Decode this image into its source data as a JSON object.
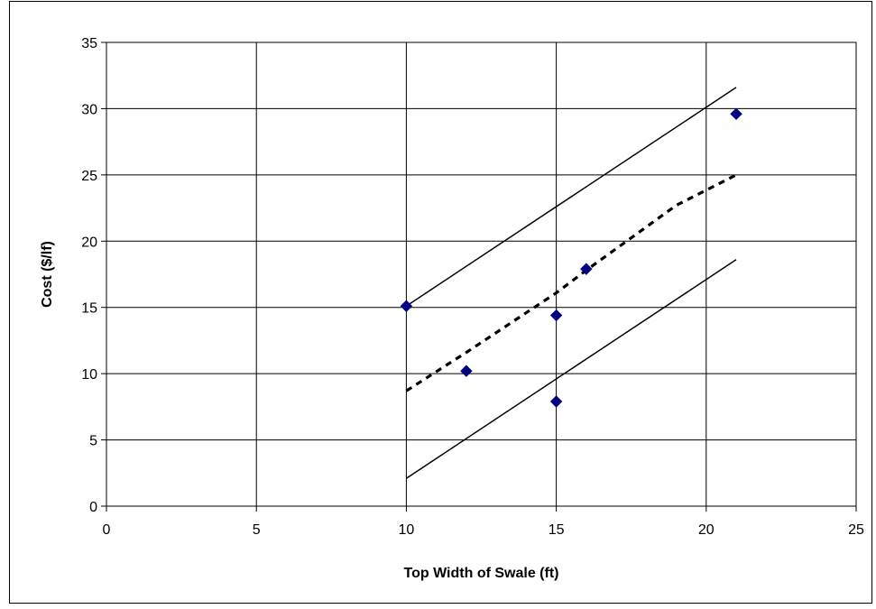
{
  "chart_data": {
    "type": "scatter",
    "title": "",
    "xlabel": "Top Width of Swale (ft)",
    "ylabel": "Cost ($/lf)",
    "xlim": [
      0,
      25
    ],
    "ylim": [
      0,
      35
    ],
    "xticks": [
      "0",
      "5",
      "10",
      "15",
      "20",
      "25"
    ],
    "yticks": [
      "0",
      "5",
      "10",
      "15",
      "20",
      "25",
      "30",
      "35"
    ],
    "grid": true,
    "legend": "none",
    "series": [
      {
        "kind": "points",
        "marker": "diamond",
        "color": "#000080",
        "x": [
          10,
          12,
          15,
          15,
          16,
          21
        ],
        "y": [
          15.1,
          10.2,
          14.4,
          7.9,
          17.9,
          29.6
        ]
      },
      {
        "kind": "line",
        "style": "solid",
        "color": "#000000",
        "x": [
          10,
          21
        ],
        "y": [
          15.1,
          31.6
        ]
      },
      {
        "kind": "line",
        "style": "dotted",
        "color": "#000000",
        "x": [
          10,
          12,
          15,
          16,
          19,
          21
        ],
        "y": [
          8.7,
          11.6,
          16.1,
          17.8,
          22.7,
          25.0
        ]
      },
      {
        "kind": "line",
        "style": "solid",
        "color": "#000000",
        "x": [
          10,
          21
        ],
        "y": [
          2.1,
          18.6
        ]
      }
    ]
  }
}
